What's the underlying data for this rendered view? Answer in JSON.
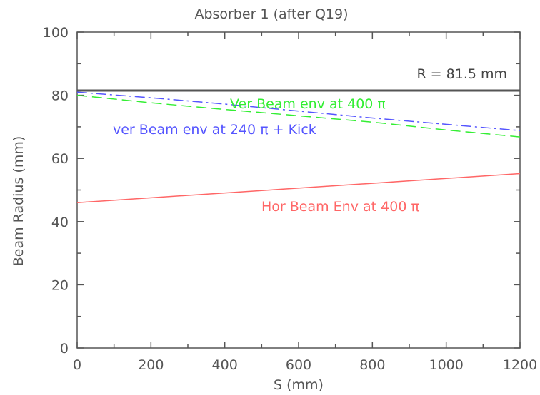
{
  "chart_data": {
    "type": "line",
    "title": "Absorber 1 (after Q19)",
    "xlabel": "S (mm)",
    "ylabel": "Beam Radius (mm)",
    "xlim": [
      0,
      1200
    ],
    "ylim": [
      0,
      100
    ],
    "xticks": [
      0,
      200,
      400,
      600,
      800,
      1000,
      1200
    ],
    "yticks": [
      0,
      20,
      40,
      60,
      80,
      100
    ],
    "grid": false,
    "series": [
      {
        "name": "R = 81.5 mm",
        "color": "#555555",
        "style": "solid",
        "x": [
          0,
          1200
        ],
        "y": [
          81.5,
          81.5
        ]
      },
      {
        "name": "Ver Beam env at 400 π",
        "color": "#33ee33",
        "style": "dashed",
        "x": [
          0,
          200,
          400,
          600,
          800,
          1000,
          1200
        ],
        "y": [
          80.0,
          77.6,
          75.5,
          73.5,
          71.5,
          69.0,
          66.8
        ]
      },
      {
        "name": "ver Beam env at 240 π + Kick",
        "color": "#5555ff",
        "style": "dashdot",
        "x": [
          0,
          200,
          400,
          600,
          800,
          1000,
          1200
        ],
        "y": [
          81.0,
          79.2,
          77.2,
          75.0,
          72.8,
          70.8,
          68.8
        ]
      },
      {
        "name": "Hor Beam Env at 400 π",
        "color": "#ff6666",
        "style": "solid",
        "x": [
          0,
          1200
        ],
        "y": [
          46.0,
          55.2
        ]
      }
    ]
  },
  "labels": {
    "r_label": "R = 81.5 mm",
    "ver400": "Ver Beam env at 400 π",
    "ver240": "ver Beam env at 240 π + Kick",
    "hor400": "Hor Beam Env at 400 π"
  }
}
